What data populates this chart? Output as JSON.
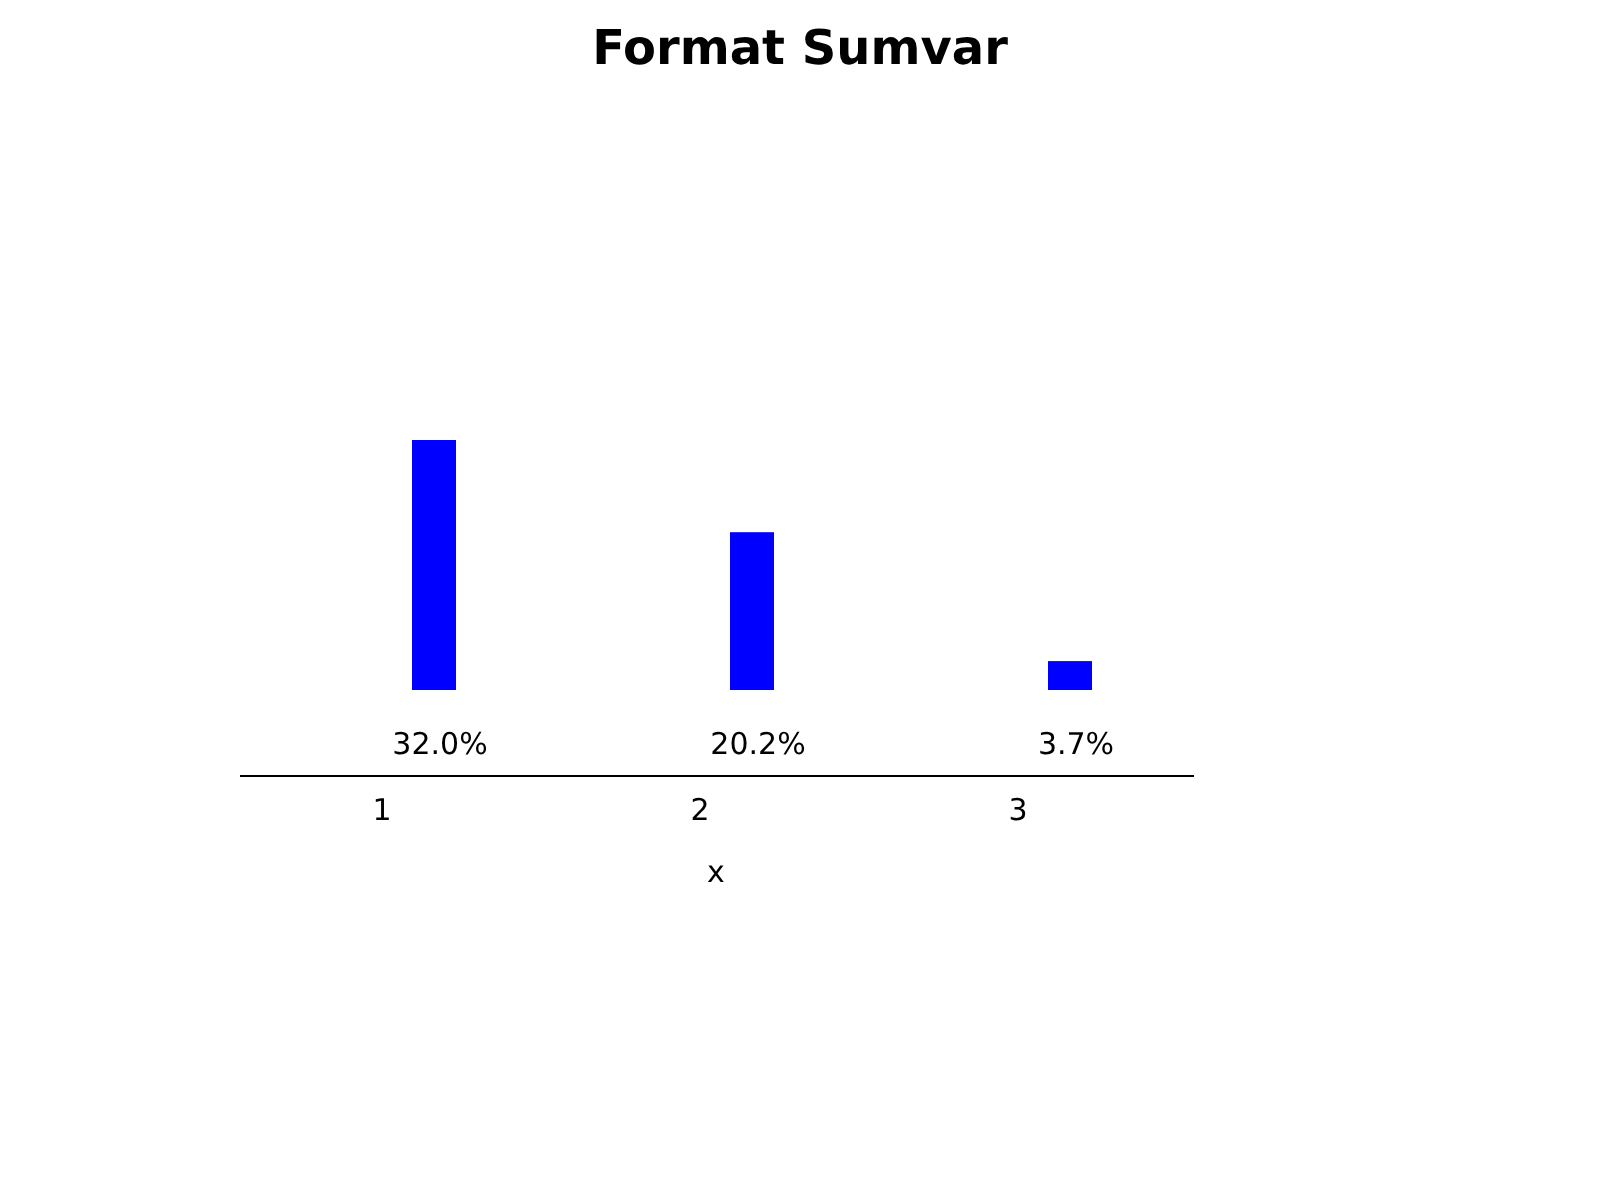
{
  "chart_data": {
    "type": "bar",
    "title": "Format Sumvar",
    "xlabel": "x",
    "categories": [
      "1",
      "2",
      "3"
    ],
    "values": [
      32.0,
      20.2,
      3.7
    ],
    "color": "#0000ff",
    "value_labels": [
      "32.0%",
      "20.2%",
      "3.7%"
    ]
  }
}
